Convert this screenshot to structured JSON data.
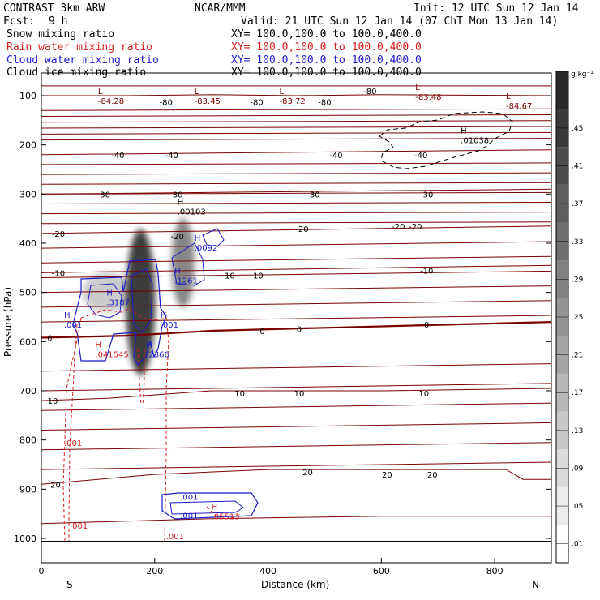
{
  "header": {
    "model": "CONTRAST  3km ARW",
    "center": "NCAR/MMM",
    "init": "Init: 12 UTC Sun 12 Jan 14",
    "fcst_label": "Fcst:",
    "fcst_value": "9 h",
    "valid": "Valid: 21 UTC Sun 12 Jan 14 (07 ChT Mon 13 Jan 14)"
  },
  "legend": [
    {
      "name": "Snow mixing ratio",
      "color": "#000000",
      "xy": "XY= 100.0,100.0 to 100.0,400.0"
    },
    {
      "name": "Rain water mixing ratio",
      "color": "#d42020",
      "xy": "XY= 100.0,100.0 to 100.0,400.0"
    },
    {
      "name": "Cloud water mixing ratio",
      "color": "#1c1cc8",
      "xy": "XY= 100.0,100.0 to 100.0,400.0"
    },
    {
      "name": "Cloud ice mixing ratio",
      "color": "#000000",
      "xy": "XY= 100.0,100.0 to 100.0,400.0"
    }
  ],
  "axes": {
    "x_label": "Distance (km)",
    "y_label": "Pressure (hPa)",
    "x_left_end": "S",
    "x_right_end": "N",
    "colorbar_unit": "g kg⁻¹"
  },
  "colors": {
    "temperature": "#7a0000",
    "rain": "#d42020",
    "cloud_water": "#1c1cc8",
    "cloud_ice": "#000000",
    "snow_shade": "#000000"
  },
  "chart_data": {
    "type": "cross-section",
    "x": {
      "range": [
        0,
        900
      ],
      "ticks": [
        0,
        200,
        400,
        600,
        800
      ],
      "tick_labels": [
        "0",
        "200",
        "400",
        "600",
        "800"
      ]
    },
    "y": {
      "range": [
        50,
        1050
      ],
      "ticks": [
        100,
        200,
        300,
        400,
        500,
        600,
        700,
        800,
        900,
        1000
      ],
      "tick_labels": [
        "100",
        "200",
        "300",
        "400",
        "500",
        "600",
        "700",
        "800",
        "900",
        "1000"
      ]
    },
    "colorbar": {
      "levels": [
        0.01,
        0.05,
        0.09,
        0.13,
        0.17,
        0.21,
        0.25,
        0.29,
        0.33,
        0.37,
        0.41,
        0.45
      ],
      "tick_labels": [
        ".01",
        ".05",
        ".09",
        ".13",
        ".17",
        ".21",
        ".25",
        ".29",
        ".33",
        ".37",
        ".41",
        ".45"
      ]
    },
    "temperature_contours": [
      {
        "label": "-80",
        "points": [
          [
            0,
            80
          ],
          [
            300,
            80
          ],
          [
            600,
            80
          ],
          [
            900,
            80
          ]
        ]
      },
      {
        "label": "-80",
        "points": [
          [
            0,
            100
          ],
          [
            150,
            100
          ],
          [
            300,
            98
          ],
          [
            450,
            100
          ],
          [
            600,
            98
          ],
          [
            900,
            100
          ]
        ],
        "labels_at": [
          [
            220,
            112
          ],
          [
            380,
            112
          ],
          [
            500,
            112
          ],
          [
            580,
            90
          ]
        ]
      },
      {
        "label": "-40",
        "points": [
          [
            0,
            220
          ],
          [
            900,
            210
          ]
        ],
        "labels_at": [
          [
            135,
            220
          ],
          [
            230,
            220
          ],
          [
            520,
            220
          ],
          [
            670,
            220
          ]
        ]
      },
      {
        "label": "-30",
        "points": [
          [
            0,
            300
          ],
          [
            900,
            290
          ]
        ],
        "labels_at": [
          [
            110,
            300
          ],
          [
            238,
            300
          ],
          [
            480,
            300
          ],
          [
            680,
            300
          ]
        ]
      },
      {
        "label": "-20",
        "points": [
          [
            0,
            380
          ],
          [
            900,
            365
          ]
        ],
        "labels_at": [
          [
            30,
            380
          ],
          [
            240,
            385
          ],
          [
            460,
            370
          ],
          [
            630,
            365
          ],
          [
            660,
            365
          ]
        ]
      },
      {
        "label": "-10",
        "points": [
          [
            0,
            460
          ],
          [
            900,
            445
          ]
        ],
        "labels_at": [
          [
            30,
            460
          ],
          [
            330,
            465
          ],
          [
            380,
            465
          ],
          [
            680,
            455
          ]
        ]
      },
      {
        "label": "0",
        "points": [
          [
            0,
            592
          ],
          [
            150,
            588
          ],
          [
            300,
            578
          ],
          [
            500,
            572
          ],
          [
            900,
            560
          ]
        ],
        "bold": true,
        "labels_at": [
          [
            15,
            592
          ],
          [
            390,
            578
          ],
          [
            455,
            574
          ],
          [
            680,
            565
          ]
        ]
      },
      {
        "label": "10",
        "points": [
          [
            0,
            720
          ],
          [
            120,
            715
          ],
          [
            300,
            700
          ],
          [
            600,
            700
          ],
          [
            900,
            695
          ]
        ],
        "labels_at": [
          [
            20,
            720
          ],
          [
            350,
            705
          ],
          [
            455,
            705
          ],
          [
            675,
            705
          ]
        ]
      },
      {
        "label": "20",
        "points": [
          [
            0,
            890
          ],
          [
            200,
            870
          ],
          [
            400,
            860
          ],
          [
            600,
            860
          ],
          [
            820,
            860
          ],
          [
            850,
            880
          ],
          [
            900,
            880
          ]
        ],
        "labels_at": [
          [
            25,
            890
          ],
          [
            470,
            865
          ],
          [
            610,
            870
          ],
          [
            690,
            870
          ]
        ]
      },
      {
        "label": "",
        "points": [
          [
            0,
            970
          ],
          [
            300,
            960
          ],
          [
            600,
            955
          ],
          [
            900,
            955
          ]
        ]
      }
    ],
    "max_min_labels": [
      {
        "type": "L",
        "value": "-84.28",
        "x": 100,
        "y": 100,
        "color": "#7a0000"
      },
      {
        "type": "L",
        "value": "-83.45",
        "x": 270,
        "y": 100,
        "color": "#7a0000"
      },
      {
        "type": "L",
        "value": "-83.72",
        "x": 420,
        "y": 100,
        "color": "#7a0000"
      },
      {
        "type": "L",
        "value": "-83.48",
        "x": 660,
        "y": 92,
        "color": "#7a0000"
      },
      {
        "type": "L",
        "value": "-84.67",
        "x": 820,
        "y": 110,
        "color": "#7a0000"
      },
      {
        "type": "H",
        "value": ".01038",
        "x": 740,
        "y": 180,
        "color": "#000000"
      },
      {
        "type": "H",
        "value": ".00103",
        "x": 240,
        "y": 325,
        "color": "#000000"
      },
      {
        "type": "H",
        "value": ".0092",
        "x": 270,
        "y": 398,
        "color": "#1c1cc8"
      },
      {
        "type": "H",
        "value": ".1261",
        "x": 235,
        "y": 465,
        "color": "#1c1cc8"
      },
      {
        "type": "H",
        "value": ".3187",
        "x": 115,
        "y": 510,
        "color": "#1c1cc8"
      },
      {
        "type": "H",
        "value": ".041545",
        "x": 95,
        "y": 615,
        "color": "#d42020"
      },
      {
        "type": "H",
        "value": ".2366",
        "x": 185,
        "y": 615,
        "color": "#1c1cc8"
      },
      {
        "type": "H",
        "value": ".001",
        "x": 40,
        "y": 555,
        "color": "#1c1cc8"
      },
      {
        "type": "H",
        "value": ".001",
        "x": 210,
        "y": 555,
        "color": "#1c1cc8"
      },
      {
        "type": "H",
        "value": ".05513",
        "x": 300,
        "y": 945,
        "color": "#d42020"
      }
    ],
    "contour_labels": [
      {
        "text": ".001",
        "x": 40,
        "y": 812,
        "color": "#d42020"
      },
      {
        "text": ".001",
        "x": 50,
        "y": 980,
        "color": "#d42020"
      },
      {
        "text": ".001",
        "x": 220,
        "y": 1002,
        "color": "#d42020"
      },
      {
        "text": ".001",
        "x": 245,
        "y": 922,
        "color": "#1c1cc8"
      },
      {
        "text": ".001",
        "x": 245,
        "y": 960,
        "color": "#1c1cc8"
      }
    ],
    "snow_cores": [
      {
        "x": 175,
        "p": 520,
        "rx": 18,
        "ry": 90,
        "max": 0.45
      },
      {
        "x": 250,
        "p": 440,
        "rx": 14,
        "ry": 55,
        "max": 0.28
      },
      {
        "x": 115,
        "p": 500,
        "rx": 30,
        "ry": 25,
        "max": 0.12
      }
    ]
  }
}
